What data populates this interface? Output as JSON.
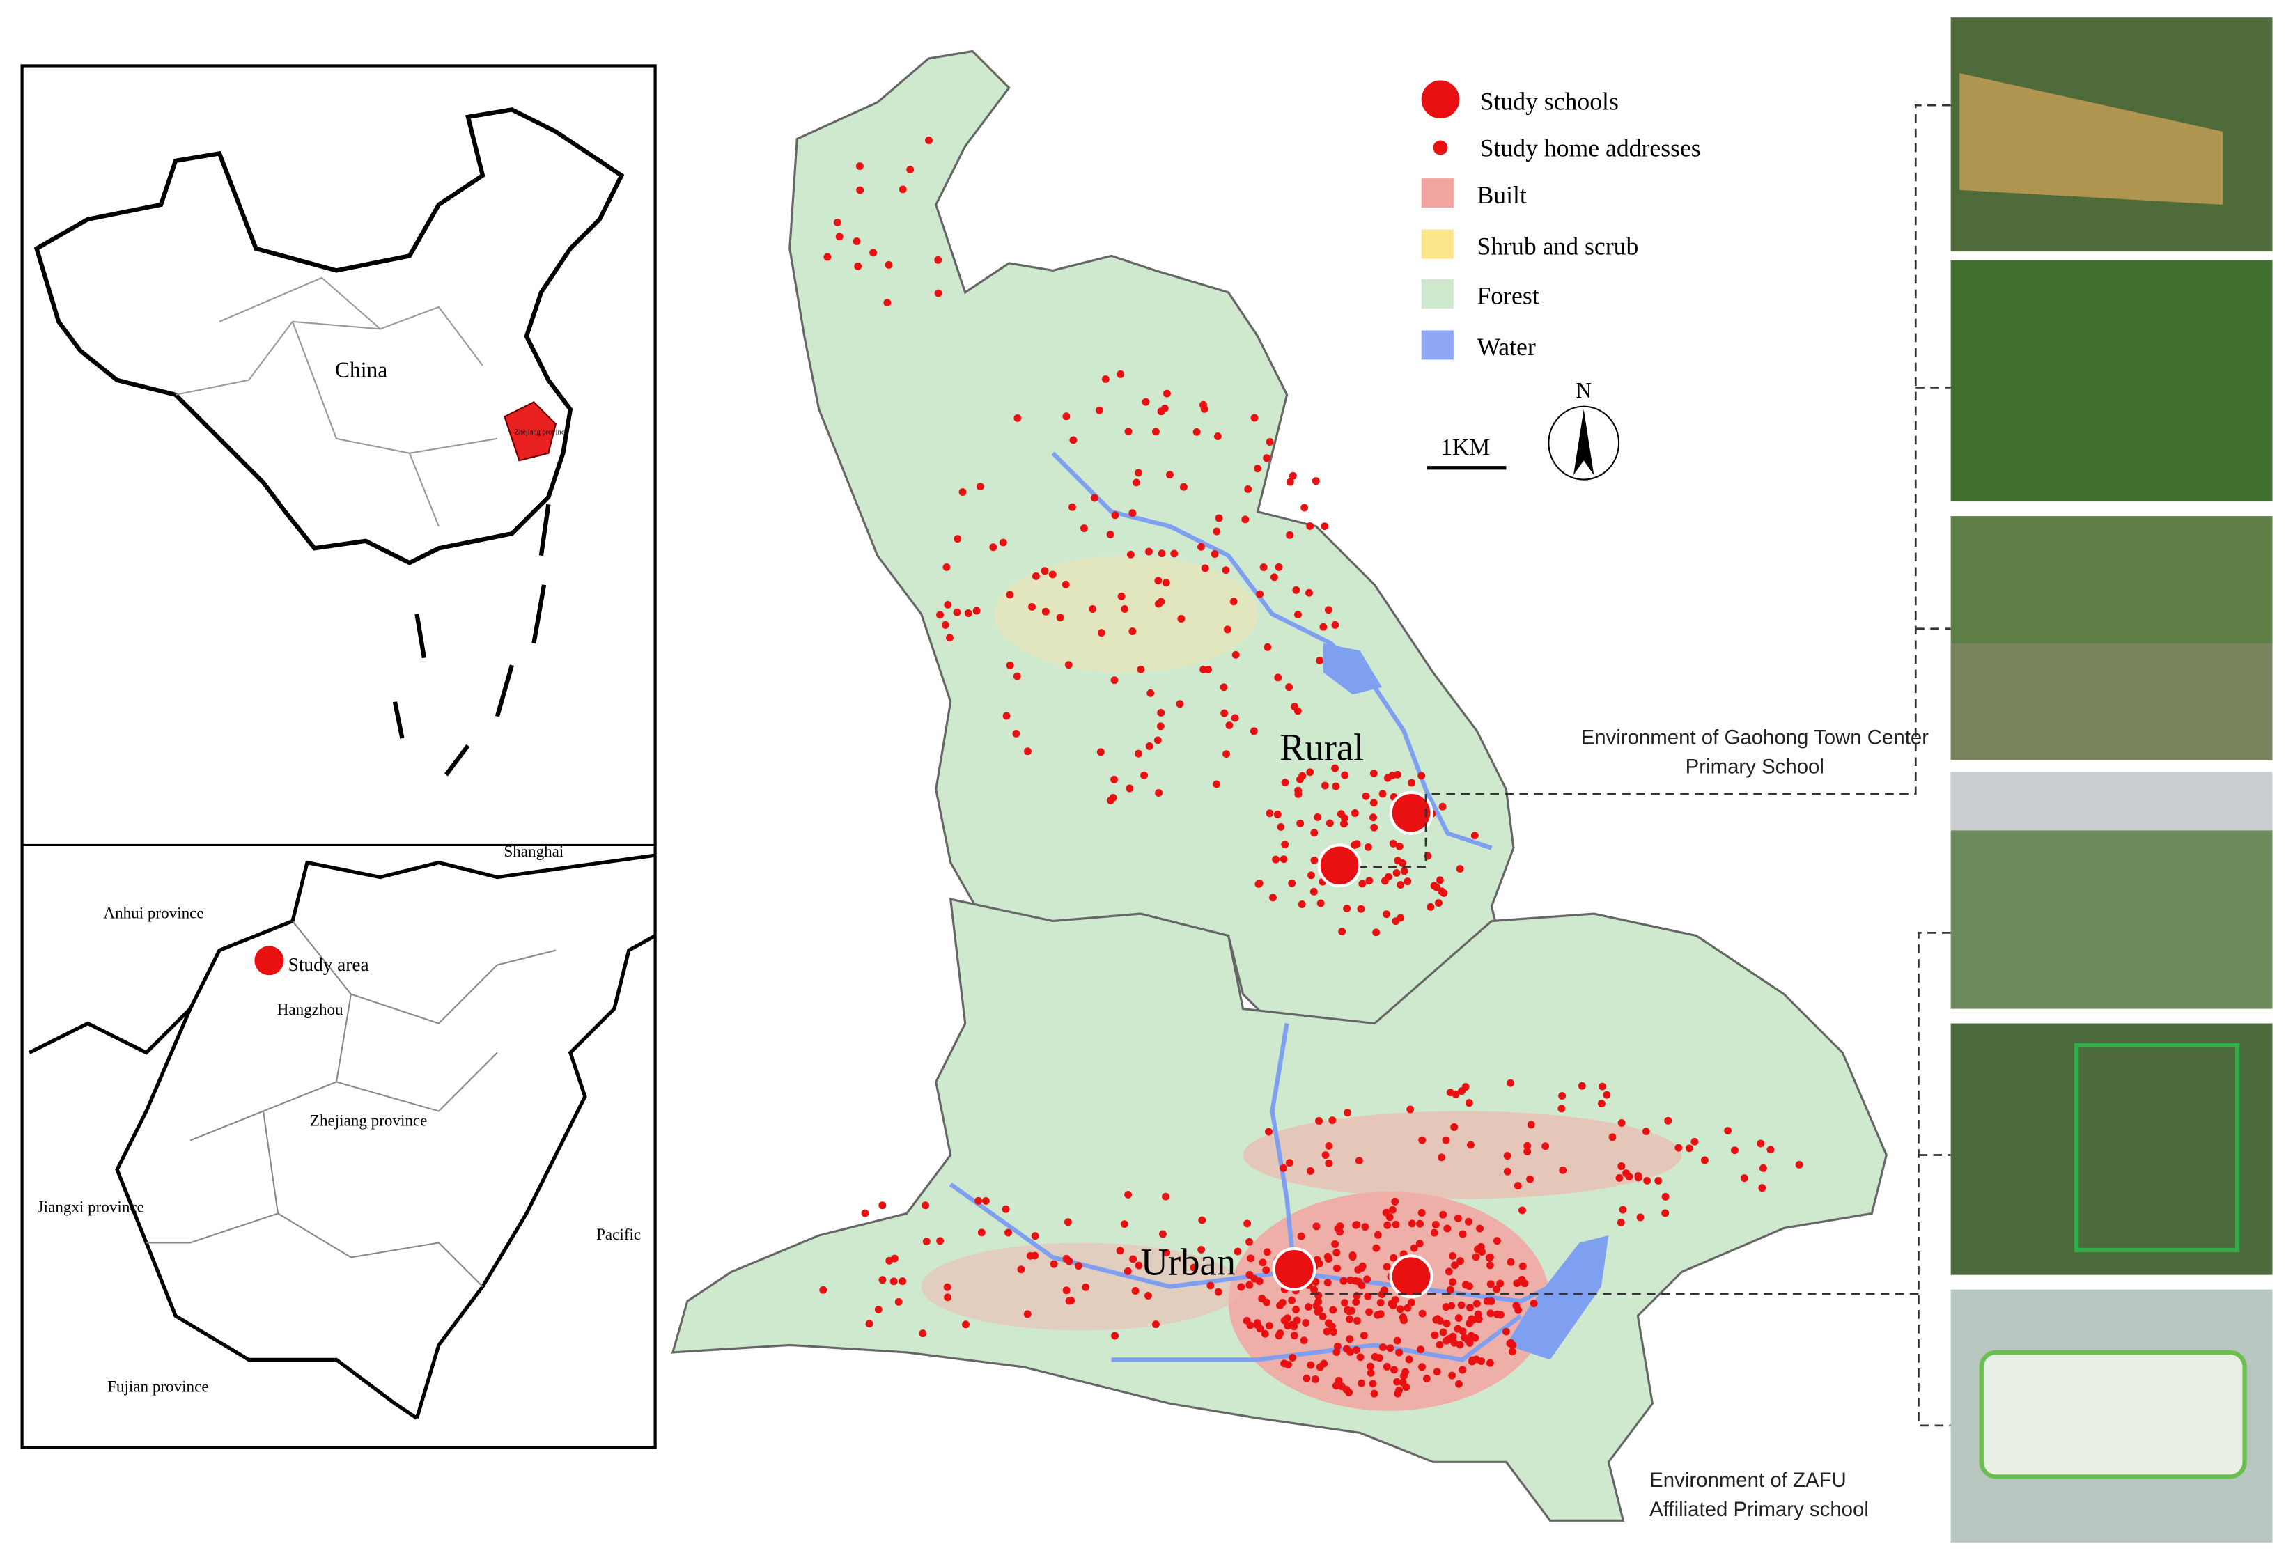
{
  "inset_china": {
    "labels": [
      "China",
      "Zhejiang province"
    ]
  },
  "inset_region": {
    "labels": [
      "Shanghai",
      "Anhui province",
      "Study area",
      "Hangzhou",
      "Zhejiang province",
      "Jiangxi province",
      "Pacific",
      "Fujian province"
    ]
  },
  "legend": {
    "items": [
      "Study schools",
      "Study home addresses",
      "Built",
      "Shrub and scrub",
      "Forest",
      "Water"
    ]
  },
  "scale_bar": "1KM",
  "north_arrow": "N",
  "map_labels": [
    "Rural",
    "Urban"
  ],
  "photo_captions": [
    "Environment of Gaohong Town Center Primary School",
    "Environment of ZAFU Affiliated Primary school"
  ]
}
